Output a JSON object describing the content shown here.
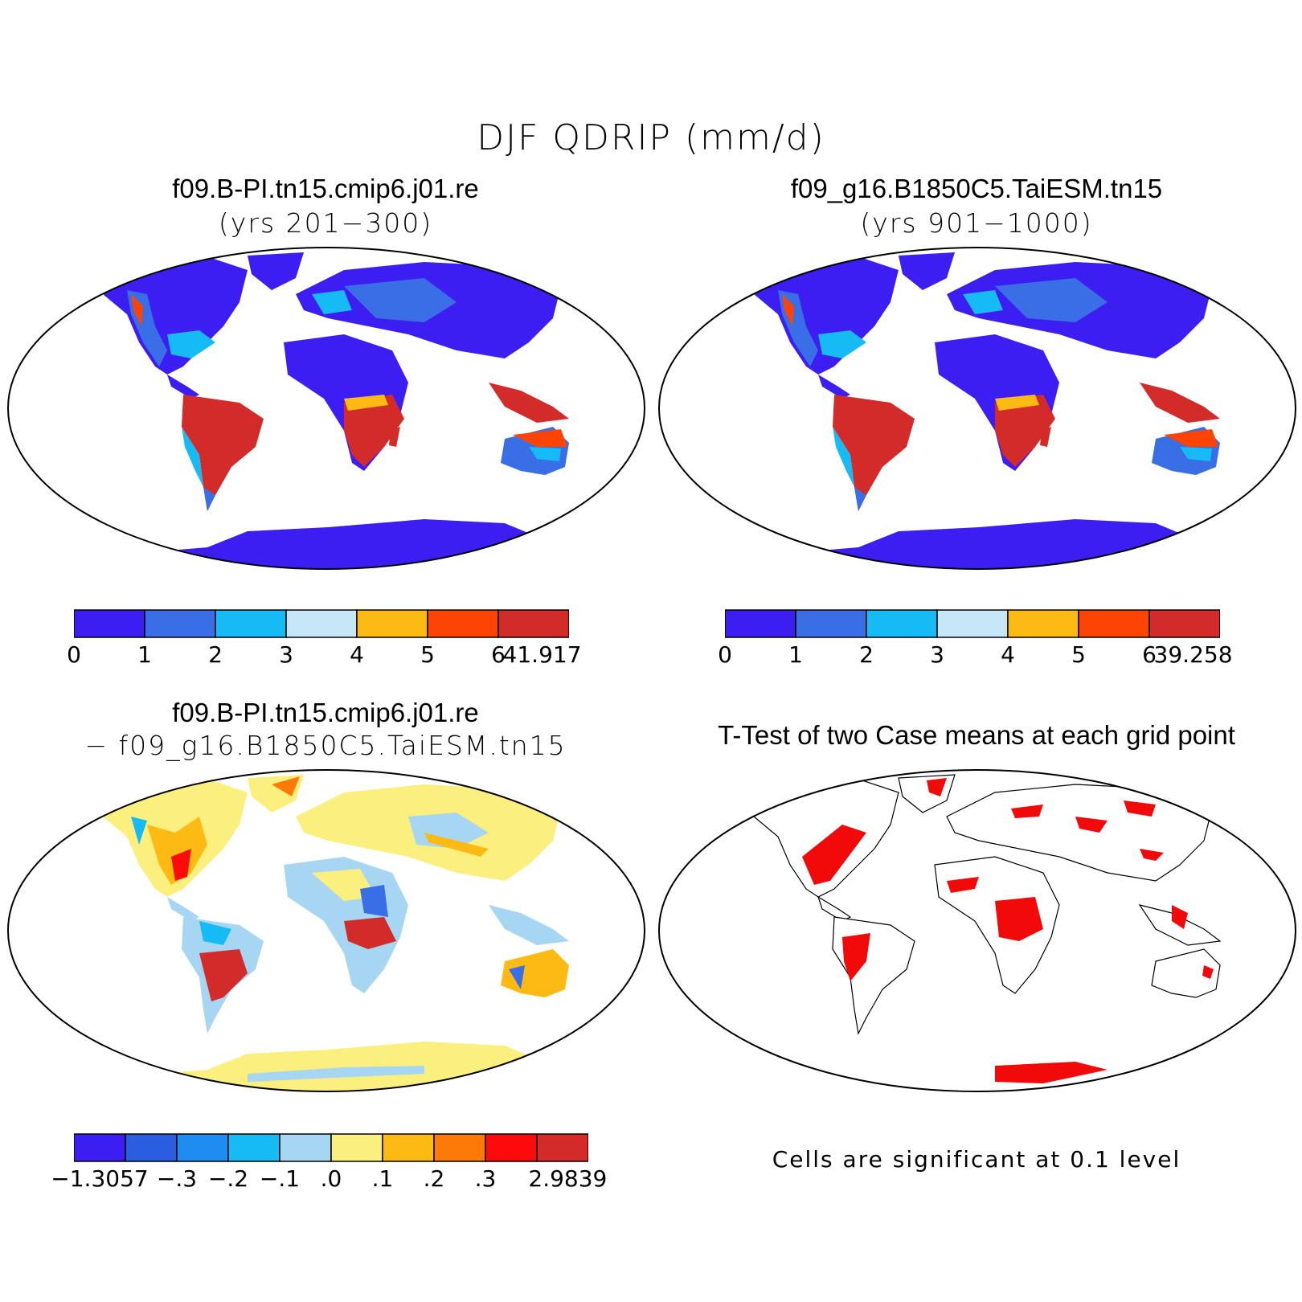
{
  "figure": {
    "title": "DJF QDRIP (mm/d)"
  },
  "panels": [
    {
      "title": "f09.B-PI.tn15.cmip6.j01.re",
      "subtitle": "(yrs 201−300)",
      "colorbar": {
        "colors": [
          "#3d1ef2",
          "#3a6ee6",
          "#16baf5",
          "#c6e6f6",
          "#fdba12",
          "#fd4404",
          "#d32a2a"
        ],
        "ticks": [
          "0",
          "1",
          "2",
          "3",
          "4",
          "5",
          "6",
          "41.917"
        ]
      }
    },
    {
      "title": "f09_g16.B1850C5.TaiESM.tn15",
      "subtitle": "(yrs 901−1000)",
      "colorbar": {
        "colors": [
          "#3d1ef2",
          "#3a6ee6",
          "#16baf5",
          "#c6e6f6",
          "#fdba12",
          "#fd4404",
          "#d32a2a"
        ],
        "ticks": [
          "0",
          "1",
          "2",
          "3",
          "4",
          "5",
          "6",
          "39.258"
        ]
      }
    },
    {
      "title": "f09.B-PI.tn15.cmip6.j01.re",
      "subtitle": "− f09_g16.B1850C5.TaiESM.tn15",
      "colorbar": {
        "colors": [
          "#3d1ef2",
          "#2a5de0",
          "#1f8cf2",
          "#16baf5",
          "#a7d6f2",
          "#fbf07e",
          "#fdba12",
          "#fd7a08",
          "#fd0a0a",
          "#d32a2a"
        ],
        "ticks": [
          "−1.3057",
          "−.3",
          "−.2",
          "−.1",
          ".0",
          ".1",
          ".2",
          ".3",
          "2.9839"
        ]
      }
    },
    {
      "title": "T-Test of two Case means at each grid point",
      "note": "Cells are significant at 0.1 level",
      "significant_color": "#f20a0a"
    }
  ]
}
